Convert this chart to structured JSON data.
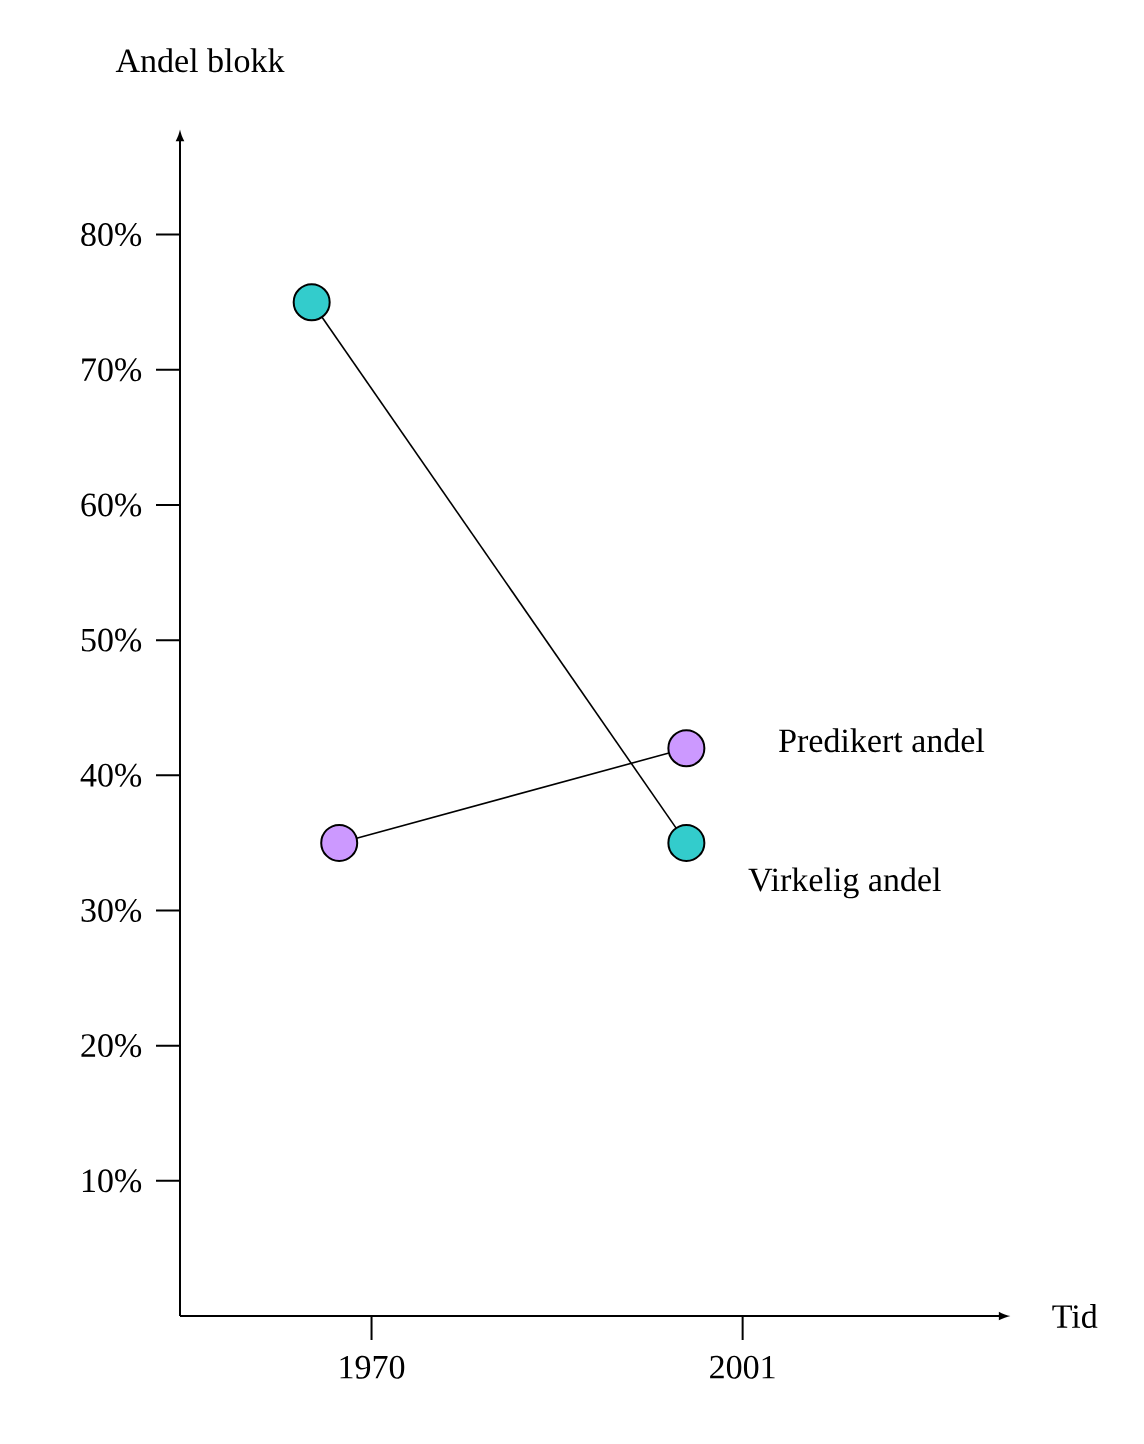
{
  "chart_data": {
    "type": "line",
    "xlabel": "Tid",
    "ylabel": "Andel blokk",
    "xlim": [
      1954,
      2022.5
    ],
    "ylim": [
      0,
      87
    ],
    "xticks": [
      1970,
      2001
    ],
    "yticks": [
      {
        "value": 10,
        "label": "10%"
      },
      {
        "value": 20,
        "label": "20%"
      },
      {
        "value": 30,
        "label": "30%"
      },
      {
        "value": 40,
        "label": "40%"
      },
      {
        "value": 50,
        "label": "50%"
      },
      {
        "value": 60,
        "label": "60%"
      },
      {
        "value": 70,
        "label": "70%"
      },
      {
        "value": 80,
        "label": "80%"
      }
    ],
    "series": [
      {
        "name": "Virkelig andel",
        "color": "#33cccc",
        "x": [
          1965,
          1996.3
        ],
        "values": [
          75,
          35
        ]
      },
      {
        "name": "Predikert andel",
        "color": "#cc99ff",
        "x": [
          1967.3,
          1996.3
        ],
        "values": [
          35,
          42
        ]
      }
    ],
    "marker": "circle",
    "line_style": "solid",
    "grid": false
  }
}
